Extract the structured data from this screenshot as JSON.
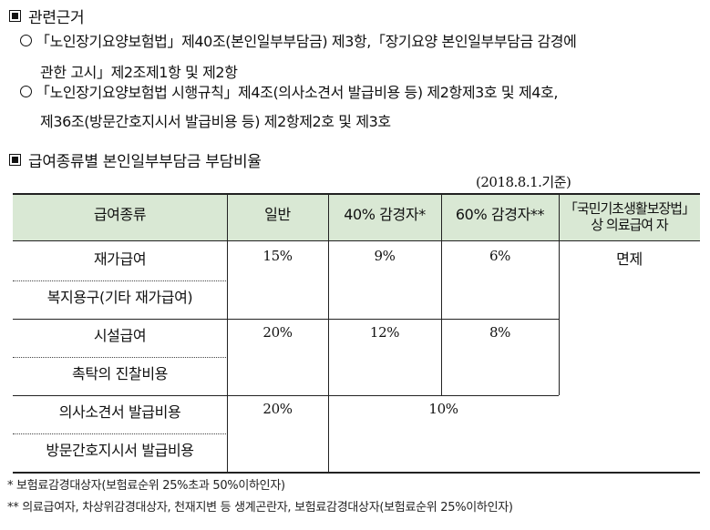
{
  "basis": {
    "title": "관련근거",
    "items": [
      {
        "line1": "「노인장기요양보험법」제40조(본인일부부담금) 제3항,「장기요양 본인일부부담금 감경에",
        "line2": "관한 고시」제2조제1항 및 제2항"
      },
      {
        "line1": "「노인장기요양보험법 시행규칙」제4조(의사소견서 발급비용 등) 제2항제3호 및 제4호,",
        "line2": "제36조(방문간호지시서 발급비용 등) 제2항제2호 및 제3호"
      }
    ]
  },
  "rates": {
    "title": "급여종류별 본인일부부담금 부담비율",
    "date_note": "(2018.8.1.기준)",
    "headers": {
      "type": "급여종류",
      "general": "일반",
      "reduced40": "40% 감경자*",
      "reduced60": "60% 감경자**",
      "basic_line1": "「국민기초생활보장법」",
      "basic_line2": "상 의료급여 자"
    },
    "rows": {
      "home_care": "재가급여",
      "welfare_equipment": "복지용구(기타 재가급여)",
      "facility_care": "시설급여",
      "commissioned_doctor": "촉탁의 진찰비용",
      "doctor_opinion": "의사소견서 발급비용",
      "nursing_order": "방문간호지시서 발급비용"
    },
    "values": {
      "home_general": "15%",
      "home_40": "9%",
      "home_60": "6%",
      "facility_general": "20%",
      "facility_40": "12%",
      "facility_60": "8%",
      "doc_general": "20%",
      "doc_reduced": "10%",
      "exempt": "면제"
    }
  },
  "footnotes": {
    "f1": "* 보험료감경대상자(보험료순위 25%초과 50%이하인자)",
    "f2": "** 의료급여자, 차상위감경대상자, 천재지변 등 생계곤란자, 보험료감경대상자(보험료순위 25%이하인자)"
  }
}
